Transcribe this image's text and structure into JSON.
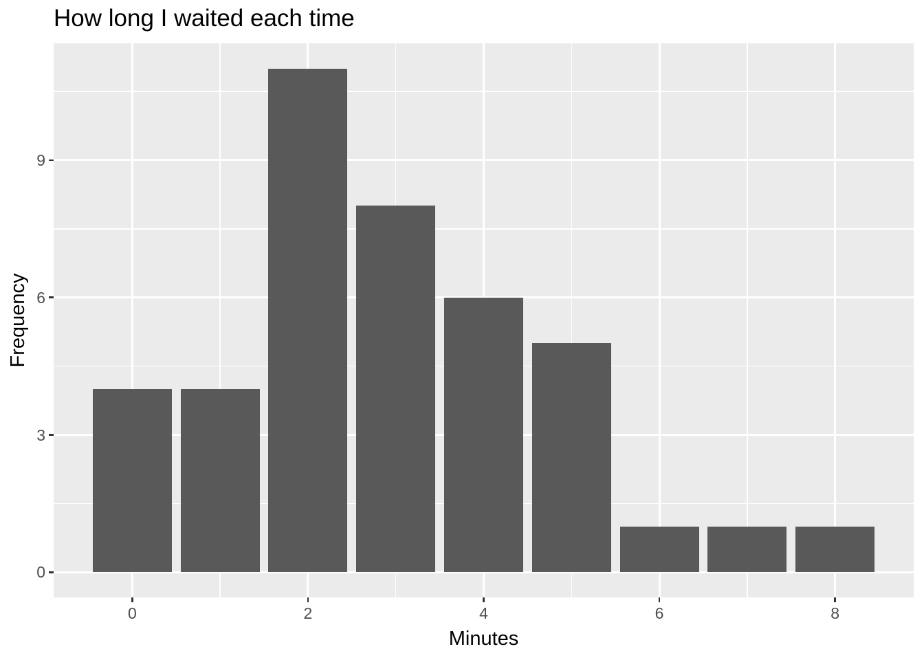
{
  "chart_data": {
    "type": "bar",
    "subtype": "histogram",
    "title": "How long I waited each time",
    "xlabel": "Minutes",
    "ylabel": "Frequency",
    "x": [
      0,
      1,
      2,
      3,
      4,
      5,
      6,
      7,
      8
    ],
    "values": [
      4,
      4,
      11,
      8,
      6,
      5,
      1,
      1,
      1
    ],
    "bar_width": 0.9,
    "xlim": [
      -0.895,
      8.895
    ],
    "ylim": [
      -0.55,
      11.55
    ],
    "x_ticks": [
      0,
      2,
      4,
      6,
      8
    ],
    "y_ticks": [
      0,
      3,
      6,
      9
    ],
    "x_minor_gridlines": [
      1,
      3,
      5,
      7
    ],
    "y_minor_gridlines": [
      1.5,
      4.5,
      7.5,
      10.5
    ],
    "grid": true,
    "legend": "none",
    "colors": {
      "bar_fill": "#595959",
      "panel_background": "#EBEBEB",
      "gridline": "#FFFFFF",
      "tick_mark": "#333333",
      "tick_label": "#4D4D4D",
      "text": "#000000",
      "figure_background": "#FFFFFF"
    }
  }
}
